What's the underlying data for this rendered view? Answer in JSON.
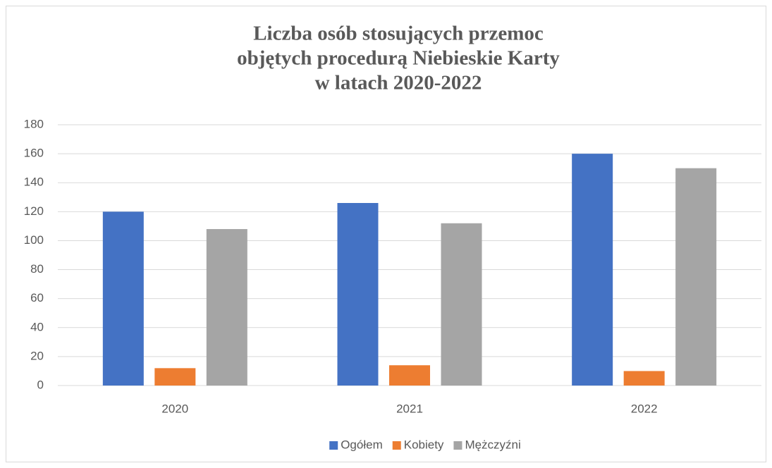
{
  "chart_data": {
    "type": "bar",
    "title": [
      "Liczba osób stosujących przemoc",
      "objętych procedurą Niebieskie Karty",
      "w latach 2020-2022"
    ],
    "categories": [
      "2020",
      "2021",
      "2022"
    ],
    "series": [
      {
        "name": "Ogółem",
        "color": "#4472c4",
        "values": [
          120,
          126,
          160
        ]
      },
      {
        "name": "Kobiety",
        "color": "#ed7d31",
        "values": [
          12,
          14,
          10
        ]
      },
      {
        "name": "Mężczyźni",
        "color": "#a5a5a5",
        "values": [
          108,
          112,
          150
        ]
      }
    ],
    "ylim": [
      0,
      180
    ],
    "yticks": [
      0,
      20,
      40,
      60,
      80,
      100,
      120,
      140,
      160,
      180
    ],
    "grid": true,
    "legend": "bottom"
  }
}
